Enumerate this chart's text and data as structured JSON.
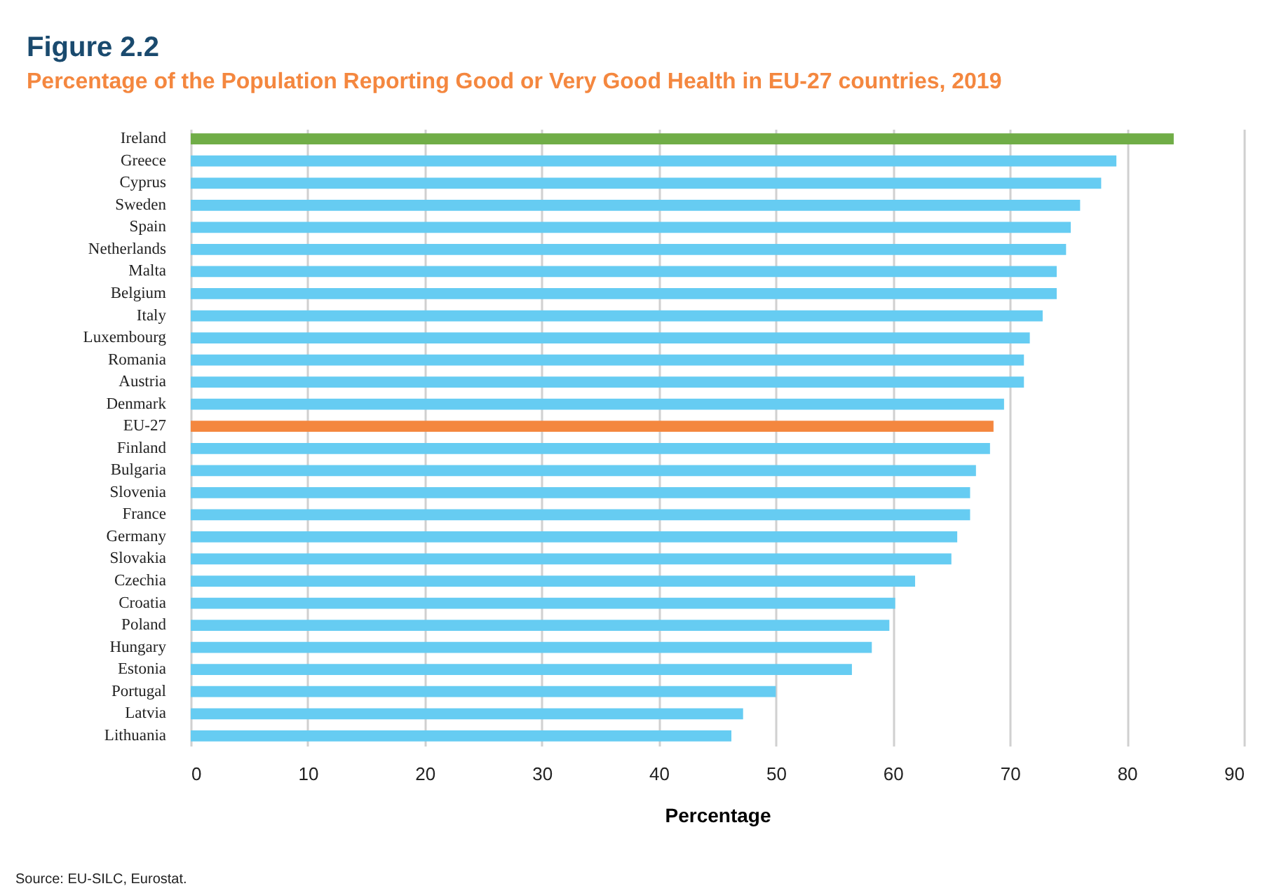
{
  "chart_data": {
    "type": "bar",
    "orientation": "horizontal",
    "title": "Figure 2.2",
    "subtitle": "Percentage of the Population Reporting Good or Very Good Health in EU-27 countries, 2019",
    "xlabel": "Percentage",
    "categories": [
      "Ireland",
      "Greece",
      "Cyprus",
      "Sweden",
      "Spain",
      "Netherlands",
      "Malta",
      "Belgium",
      "Italy",
      "Luxembourg",
      "Romania",
      "Austria",
      "Denmark",
      "EU-27",
      "Finland",
      "Bulgaria",
      "Slovenia",
      "France",
      "Germany",
      "Slovakia",
      "Czechia",
      "Croatia",
      "Poland",
      "Hungary",
      "Estonia",
      "Portugal",
      "Latvia",
      "Lithuania"
    ],
    "values": [
      84.0,
      79.1,
      77.8,
      76.0,
      75.2,
      74.8,
      74.0,
      74.0,
      72.8,
      71.7,
      71.2,
      71.2,
      69.5,
      68.6,
      68.3,
      67.1,
      66.6,
      66.6,
      65.5,
      65.0,
      61.9,
      60.2,
      59.7,
      58.2,
      56.5,
      50.0,
      47.2,
      46.2
    ],
    "colors": [
      "#70ad47",
      "#66ccf2",
      "#66ccf2",
      "#66ccf2",
      "#66ccf2",
      "#66ccf2",
      "#66ccf2",
      "#66ccf2",
      "#66ccf2",
      "#66ccf2",
      "#66ccf2",
      "#66ccf2",
      "#66ccf2",
      "#f4873f",
      "#66ccf2",
      "#66ccf2",
      "#66ccf2",
      "#66ccf2",
      "#66ccf2",
      "#66ccf2",
      "#66ccf2",
      "#66ccf2",
      "#66ccf2",
      "#66ccf2",
      "#66ccf2",
      "#66ccf2",
      "#66ccf2",
      "#66ccf2"
    ],
    "xlim": [
      0,
      90
    ],
    "xticks": [
      0,
      10,
      20,
      30,
      40,
      50,
      60,
      70,
      80,
      90
    ],
    "grid": "x",
    "annotations": [
      "Source: EU-SILC, Eurostat."
    ]
  }
}
